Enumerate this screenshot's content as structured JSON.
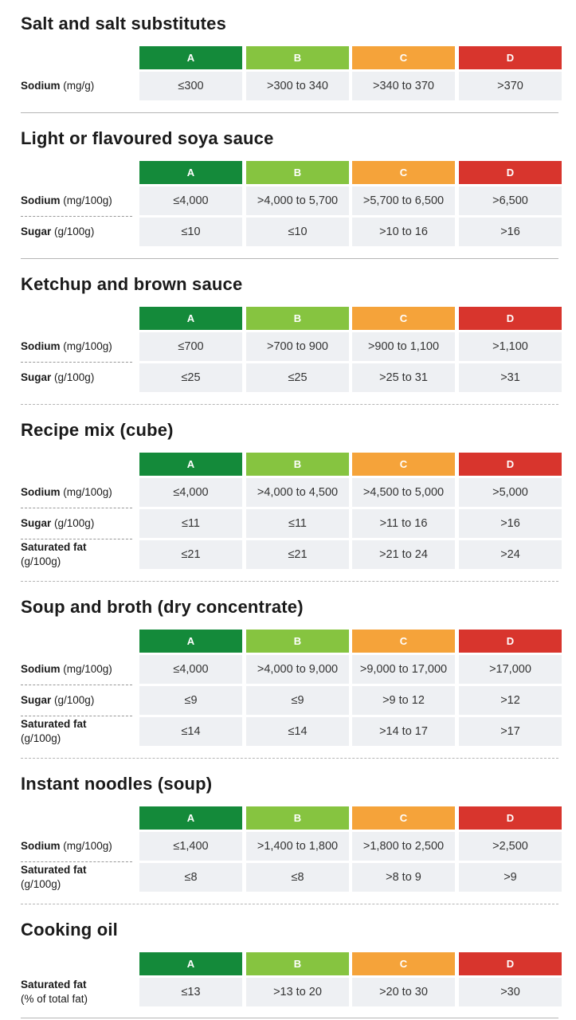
{
  "grade_labels": [
    "A",
    "B",
    "C",
    "D"
  ],
  "colors": {
    "A": "#148a3a",
    "B": "#86c440",
    "C": "#f5a33a",
    "D": "#d8352d"
  },
  "sections": [
    {
      "title": "Salt and salt substitutes",
      "rows": [
        {
          "name": "Sodium",
          "unit": "(mg/g)",
          "unit_inline": true,
          "values": [
            "≤300",
            ">300 to 340",
            ">340 to 370",
            ">370"
          ]
        }
      ]
    },
    {
      "title": "Light or flavoured soya sauce",
      "rows": [
        {
          "name": "Sodium",
          "unit": "(mg/100g)",
          "unit_inline": true,
          "values": [
            "≤4,000",
            ">4,000 to 5,700",
            ">5,700 to 6,500",
            ">6,500"
          ]
        },
        {
          "name": "Sugar",
          "unit": "(g/100g)",
          "unit_inline": true,
          "values": [
            "≤10",
            "≤10",
            ">10 to 16",
            ">16"
          ]
        }
      ]
    },
    {
      "title": "Ketchup and brown sauce",
      "rows": [
        {
          "name": "Sodium",
          "unit": "(mg/100g)",
          "unit_inline": true,
          "values": [
            "≤700",
            ">700 to 900",
            ">900 to 1,100",
            ">1,100"
          ]
        },
        {
          "name": "Sugar",
          "unit": "(g/100g)",
          "unit_inline": true,
          "values": [
            "≤25",
            "≤25",
            ">25 to 31",
            ">31"
          ]
        }
      ]
    },
    {
      "title": "Recipe mix (cube)",
      "rows": [
        {
          "name": "Sodium",
          "unit": "(mg/100g)",
          "unit_inline": true,
          "values": [
            "≤4,000",
            ">4,000 to 4,500",
            ">4,500 to 5,000",
            ">5,000"
          ]
        },
        {
          "name": "Sugar",
          "unit": "(g/100g)",
          "unit_inline": true,
          "values": [
            "≤11",
            "≤11",
            ">11 to 16",
            ">16"
          ]
        },
        {
          "name": "Saturated fat",
          "unit": "(g/100g)",
          "unit_inline": false,
          "values": [
            "≤21",
            "≤21",
            ">21 to 24",
            ">24"
          ]
        }
      ]
    },
    {
      "title": "Soup and broth (dry concentrate)",
      "rows": [
        {
          "name": "Sodium",
          "unit": "(mg/100g)",
          "unit_inline": true,
          "values": [
            "≤4,000",
            ">4,000 to 9,000",
            ">9,000 to 17,000",
            ">17,000"
          ]
        },
        {
          "name": "Sugar",
          "unit": "(g/100g)",
          "unit_inline": true,
          "values": [
            "≤9",
            "≤9",
            ">9 to 12",
            ">12"
          ]
        },
        {
          "name": "Saturated fat",
          "unit": "(g/100g)",
          "unit_inline": false,
          "values": [
            "≤14",
            "≤14",
            ">14 to 17",
            ">17"
          ]
        }
      ]
    },
    {
      "title": "Instant noodles (soup)",
      "rows": [
        {
          "name": "Sodium",
          "unit": "(mg/100g)",
          "unit_inline": true,
          "values": [
            "≤1,400",
            ">1,400 to 1,800",
            ">1,800 to 2,500",
            ">2,500"
          ]
        },
        {
          "name": "Saturated fat",
          "unit": "(g/100g)",
          "unit_inline": false,
          "values": [
            "≤8",
            "≤8",
            ">8 to 9",
            ">9"
          ]
        }
      ]
    },
    {
      "title": "Cooking oil",
      "rows": [
        {
          "name": "Saturated fat",
          "unit": "(% of total fat)",
          "unit_inline": false,
          "values": [
            "≤13",
            ">13 to 20",
            ">20 to 30",
            ">30"
          ]
        }
      ]
    }
  ]
}
